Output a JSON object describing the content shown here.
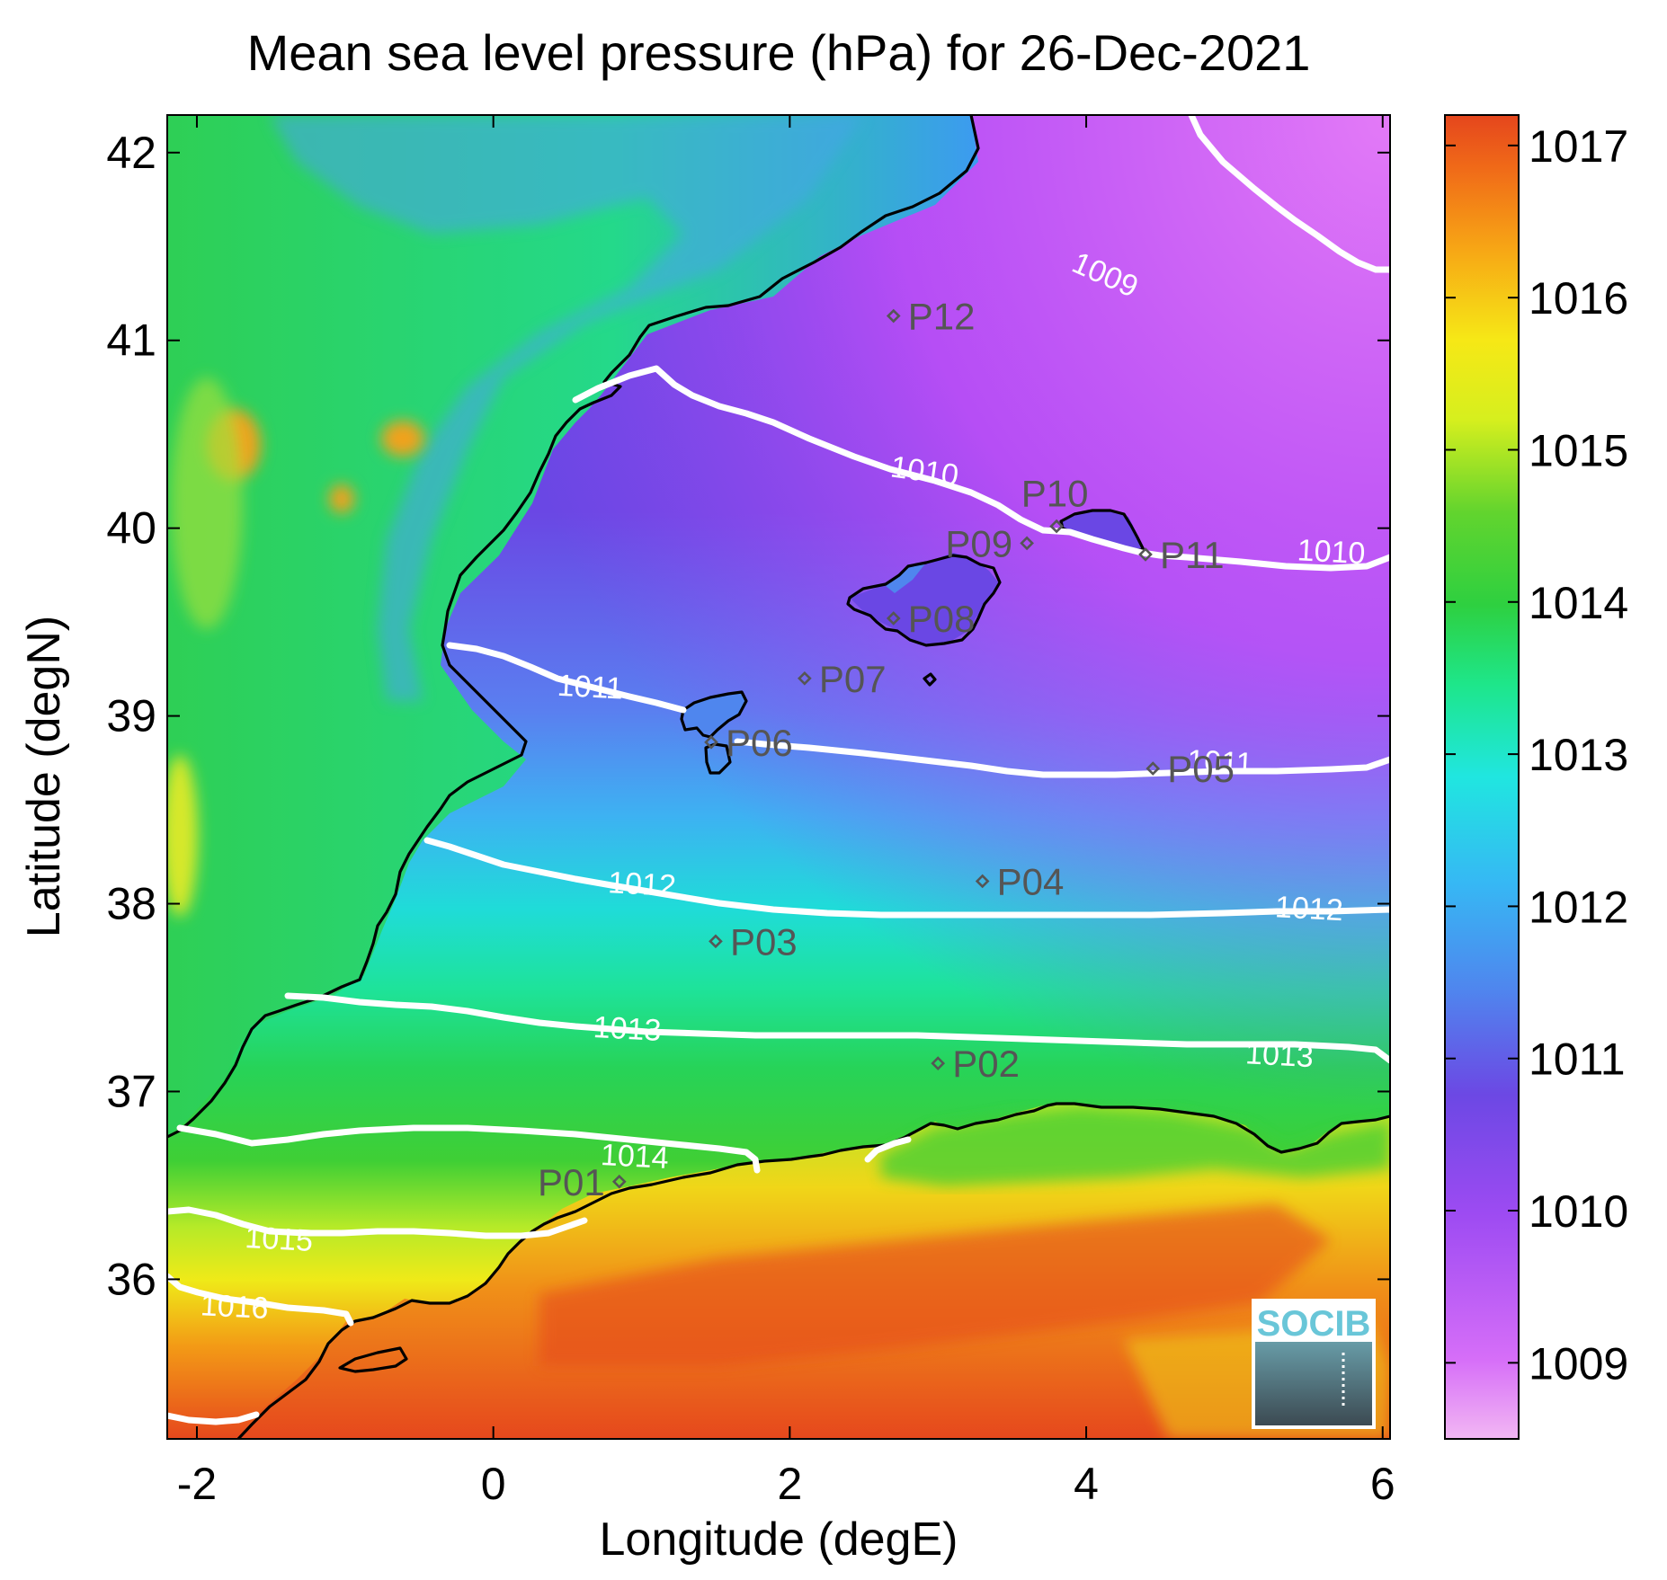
{
  "title": "Mean sea level pressure (hPa) for 26-Dec-2021",
  "axes": {
    "xlabel": "Longitude (degE)",
    "ylabel": "Latitude (degN)",
    "xlim": [
      -2.2,
      6.05
    ],
    "ylim": [
      35.15,
      42.2
    ],
    "xticks": [
      "-2",
      "0",
      "2",
      "4",
      "6"
    ],
    "xtick_values": [
      -2,
      0,
      2,
      4,
      6
    ],
    "yticks": [
      "36",
      "37",
      "38",
      "39",
      "40",
      "41",
      "42"
    ],
    "ytick_values": [
      36,
      37,
      38,
      39,
      40,
      41,
      42
    ]
  },
  "colorbar": {
    "range": [
      1008.5,
      1017.2
    ],
    "ticks": [
      "1009",
      "1010",
      "1011",
      "1012",
      "1013",
      "1014",
      "1015",
      "1016",
      "1017"
    ],
    "tick_values": [
      1009,
      1010,
      1011,
      1012,
      1013,
      1014,
      1015,
      1016,
      1017
    ],
    "colormap": [
      "#f2b7f3",
      "#c64dfa",
      "#7542e8",
      "#3aa8f4",
      "#20e8e2",
      "#1ee67e",
      "#2fca31",
      "#b3ea2a",
      "#f5ef14",
      "#f79f14",
      "#e84a1e"
    ]
  },
  "isobars": [
    {
      "label": "1009",
      "label_lon": 4.1,
      "label_lat": 41.3
    },
    {
      "label": "1010",
      "label_lon": 2.9,
      "label_lat": 40.25
    },
    {
      "label": "1010",
      "label_lon": 5.65,
      "label_lat": 39.82
    },
    {
      "label": "1011",
      "label_lon": 0.65,
      "label_lat": 39.1
    },
    {
      "label": "1011",
      "label_lon": 4.9,
      "label_lat": 38.7
    },
    {
      "label": "1012",
      "label_lon": 1.0,
      "label_lat": 38.05
    },
    {
      "label": "1012",
      "label_lon": 5.5,
      "label_lat": 37.92
    },
    {
      "label": "1013",
      "label_lon": 0.9,
      "label_lat": 37.28
    },
    {
      "label": "1013",
      "label_lon": 5.3,
      "label_lat": 37.14
    },
    {
      "label": "1014",
      "label_lon": 0.95,
      "label_lat": 36.6
    },
    {
      "label": "1015",
      "label_lon": -1.45,
      "label_lat": 36.16
    },
    {
      "label": "1016",
      "label_lon": -1.75,
      "label_lat": 35.8
    }
  ],
  "stations": [
    {
      "label": "P01",
      "lon": 0.85,
      "lat": 36.52,
      "side": "left"
    },
    {
      "label": "P02",
      "lon": 3.0,
      "lat": 37.15,
      "side": "right"
    },
    {
      "label": "P03",
      "lon": 1.5,
      "lat": 37.8,
      "side": "right"
    },
    {
      "label": "P04",
      "lon": 3.3,
      "lat": 38.12,
      "side": "right"
    },
    {
      "label": "P05",
      "lon": 4.45,
      "lat": 38.72,
      "side": "right"
    },
    {
      "label": "P06",
      "lon": 1.47,
      "lat": 38.86,
      "side": "right"
    },
    {
      "label": "P07",
      "lon": 2.1,
      "lat": 39.2,
      "side": "right"
    },
    {
      "label": "P08",
      "lon": 2.7,
      "lat": 39.52,
      "side": "right"
    },
    {
      "label": "P09",
      "lon": 3.6,
      "lat": 39.92,
      "side": "left"
    },
    {
      "label": "P10",
      "lon": 3.8,
      "lat": 40.01,
      "side": "up"
    },
    {
      "label": "P11",
      "lon": 4.4,
      "lat": 39.86,
      "side": "right"
    },
    {
      "label": "P12",
      "lon": 2.7,
      "lat": 41.13,
      "side": "right"
    }
  ],
  "logo": {
    "text": "SOCIB"
  }
}
